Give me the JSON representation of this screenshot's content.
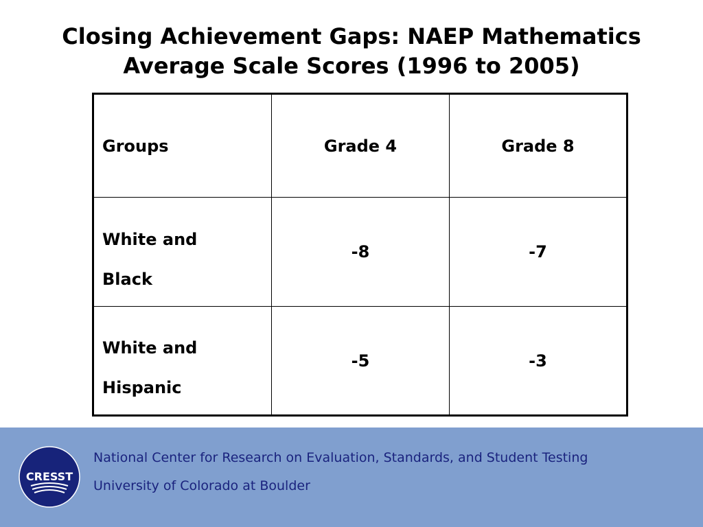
{
  "title": {
    "line1": "Closing Achievement Gaps: NAEP Mathematics",
    "line2": "Average Scale Scores (1996 to 2005)"
  },
  "table": {
    "headers": [
      "Groups",
      "Grade 4",
      "Grade 8"
    ],
    "rows": [
      {
        "group_line1": "White and",
        "group_line2": "Black",
        "grade4": "-8",
        "grade8": "-7"
      },
      {
        "group_line1": "White and",
        "group_line2": "Hispanic",
        "grade4": "-5",
        "grade8": "-3"
      }
    ]
  },
  "footer": {
    "logo_text": "CRESST",
    "line1": "National Center for Research on Evaluation, Standards, and Student Testing",
    "line2": "University of Colorado at Boulder",
    "background_color": "#809fcf",
    "text_color": "#1a237e",
    "logo_color": "#17237a"
  }
}
